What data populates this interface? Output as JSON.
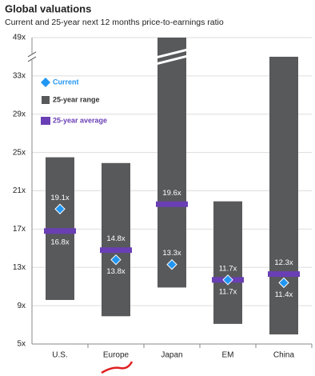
{
  "chart_data": {
    "type": "range_bar",
    "title": "Global valuations",
    "subtitle": "Current and 25-year next 12 months price-to-earnings ratio",
    "categories": [
      "U.S.",
      "Europe",
      "Japan",
      "EM",
      "China"
    ],
    "series": [
      {
        "name": "Current",
        "color": "#2196f3",
        "values": [
          19.1,
          13.8,
          13.3,
          11.7,
          11.4
        ],
        "value_labels": [
          "19.1x",
          "13.8x",
          "13.3x",
          "11.7x",
          "11.4x"
        ]
      },
      {
        "name": "25-year range",
        "color": "#58595b",
        "low": [
          9.6,
          7.9,
          10.9,
          7.1,
          6.0
        ],
        "high": [
          24.5,
          23.9,
          49,
          19.9,
          35
        ]
      },
      {
        "name": "25-year average",
        "color": "#6a3fb5",
        "values": [
          16.8,
          14.8,
          19.6,
          11.7,
          12.3
        ],
        "value_labels": [
          "16.8x",
          "14.8x",
          "19.6x",
          "11.7x",
          "12.3x"
        ]
      }
    ],
    "ylim": [
      5,
      49
    ],
    "axis_break": [
      35,
      47
    ],
    "yticks": [
      {
        "value": 5,
        "label": "5x"
      },
      {
        "value": 9,
        "label": "9x"
      },
      {
        "value": 13,
        "label": "13x"
      },
      {
        "value": 17,
        "label": "17x"
      },
      {
        "value": 21,
        "label": "21x"
      },
      {
        "value": 25,
        "label": "25x"
      },
      {
        "value": 29,
        "label": "29x"
      },
      {
        "value": 33,
        "label": "33x"
      },
      {
        "value": 49,
        "label": "49x"
      }
    ],
    "grid": true
  }
}
